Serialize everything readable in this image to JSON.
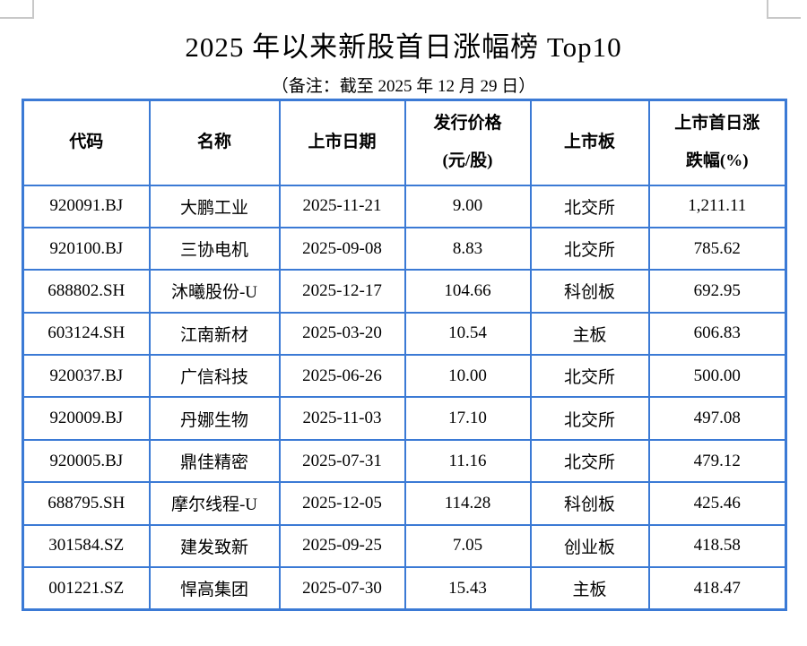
{
  "page": {
    "title": "2025 年以来新股首日涨幅榜 Top10",
    "subtitle": "（备注：截至 2025 年 12 月 29 日）"
  },
  "colors": {
    "table_border": "#3b7ad5",
    "corner_mark": "#c8c8c8",
    "text": "#000000"
  },
  "table": {
    "headers": [
      "代码",
      "名称",
      "上市日期",
      "发行价格\n(元/股)",
      "上市板",
      "上市首日涨\n跌幅(%)"
    ],
    "rows": [
      [
        "920091.BJ",
        "大鹏工业",
        "2025-11-21",
        "9.00",
        "北交所",
        "1,211.11"
      ],
      [
        "920100.BJ",
        "三协电机",
        "2025-09-08",
        "8.83",
        "北交所",
        "785.62"
      ],
      [
        "688802.SH",
        "沐曦股份-U",
        "2025-12-17",
        "104.66",
        "科创板",
        "692.95"
      ],
      [
        "603124.SH",
        "江南新材",
        "2025-03-20",
        "10.54",
        "主板",
        "606.83"
      ],
      [
        "920037.BJ",
        "广信科技",
        "2025-06-26",
        "10.00",
        "北交所",
        "500.00"
      ],
      [
        "920009.BJ",
        "丹娜生物",
        "2025-11-03",
        "17.10",
        "北交所",
        "497.08"
      ],
      [
        "920005.BJ",
        "鼎佳精密",
        "2025-07-31",
        "11.16",
        "北交所",
        "479.12"
      ],
      [
        "688795.SH",
        "摩尔线程-U",
        "2025-12-05",
        "114.28",
        "科创板",
        "425.46"
      ],
      [
        "301584.SZ",
        "建发致新",
        "2025-09-25",
        "7.05",
        "创业板",
        "418.58"
      ],
      [
        "001221.SZ",
        "悍高集团",
        "2025-07-30",
        "15.43",
        "主板",
        "418.47"
      ]
    ]
  }
}
